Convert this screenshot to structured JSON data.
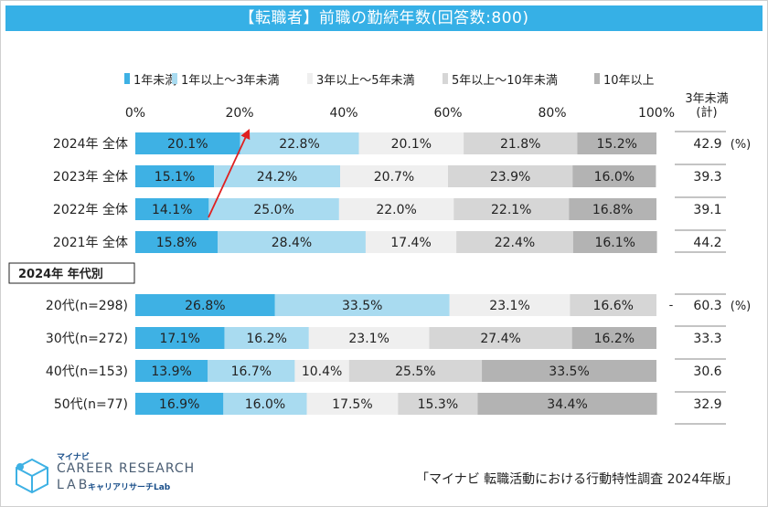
{
  "title": "【転職者】前職の勤続年数(回答数:800)",
  "legend": [
    {
      "label": "1年未満",
      "color": "#3eb1e4"
    },
    {
      "label": "1年以上～3年未満",
      "color": "#a9dbf0"
    },
    {
      "label": "3年以上～5年未満",
      "color": "#efefef"
    },
    {
      "label": "5年以上～10年未満",
      "color": "#d6d6d6"
    },
    {
      "label": "10年以上",
      "color": "#b3b3b3"
    }
  ],
  "side_header": [
    "3年未満",
    "(計)"
  ],
  "section_label": "2024年 年代別",
  "source": "「マイナビ 転職活動における行動特性調査 2024年版」",
  "logo": {
    "brand": "マイナビ",
    "line1": "CAREER RESEARCH",
    "line2": "LAB",
    "sub": "キャリアリサーチLab"
  },
  "chart_data": {
    "type": "bar",
    "orientation": "horizontal",
    "stacked": true,
    "x_ticks": [
      "0%",
      "20%",
      "40%",
      "60%",
      "80%",
      "100%"
    ],
    "xlim": [
      0,
      100
    ],
    "series_names": [
      "1年未満",
      "1年以上～3年未満",
      "3年以上～5年未満",
      "5年以上～10年未満",
      "10年以上"
    ],
    "rows": [
      {
        "label": "2024年 全体",
        "values": [
          20.1,
          22.8,
          20.1,
          21.8,
          15.2
        ],
        "total": "42.9",
        "unit": "(%)"
      },
      {
        "label": "2023年 全体",
        "values": [
          15.1,
          24.2,
          20.7,
          23.9,
          16.0
        ],
        "total": "39.3"
      },
      {
        "label": "2022年 全体",
        "values": [
          14.1,
          25.0,
          22.0,
          22.1,
          16.8
        ],
        "total": "39.1"
      },
      {
        "label": "2021年 全体",
        "values": [
          15.8,
          28.4,
          17.4,
          22.4,
          16.1
        ],
        "total": "44.2"
      },
      {
        "label": "20代(n=298)",
        "values": [
          26.8,
          33.5,
          23.1,
          16.6,
          0.0
        ],
        "total": "60.3",
        "unit": "(%)",
        "dash": "-"
      },
      {
        "label": "30代(n=272)",
        "values": [
          17.1,
          16.2,
          23.1,
          27.4,
          16.2
        ],
        "total": "33.3"
      },
      {
        "label": "40代(n=153)",
        "values": [
          13.9,
          16.7,
          10.4,
          25.5,
          33.5
        ],
        "total": "30.6"
      },
      {
        "label": "50代(n=77)",
        "values": [
          16.9,
          16.0,
          17.5,
          15.3,
          34.4
        ],
        "total": "32.9"
      }
    ]
  }
}
